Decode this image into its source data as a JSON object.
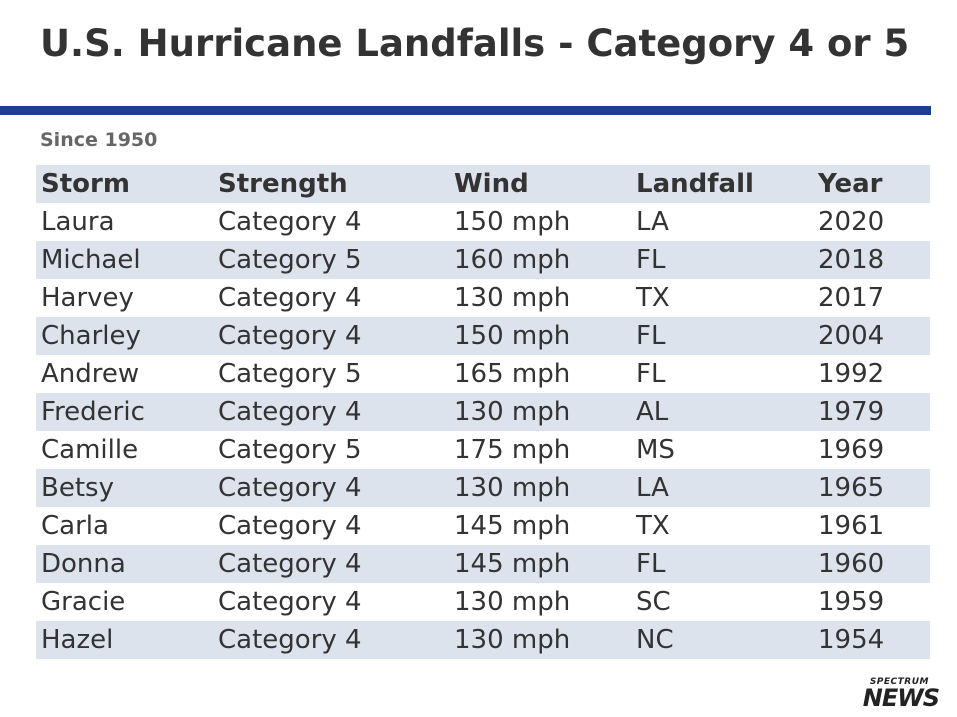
{
  "title": "U.S. Hurricane Landfalls - Category 4 or 5",
  "subtitle": "Since 1950",
  "colors": {
    "rule": "#1c3f8c",
    "stripe": "#dde3ed",
    "text": "#333333"
  },
  "logo": {
    "line1": "SPECTRUM",
    "line2": "NEWS"
  },
  "chart_data": {
    "type": "table",
    "title": "U.S. Hurricane Landfalls - Category 4 or 5",
    "subtitle": "Since 1950",
    "columns": [
      "Storm",
      "Strength",
      "Wind",
      "Landfall",
      "Year"
    ],
    "rows": [
      [
        "Laura",
        "Category 4",
        "150 mph",
        "LA",
        "2020"
      ],
      [
        "Michael",
        "Category 5",
        "160 mph",
        "FL",
        "2018"
      ],
      [
        "Harvey",
        "Category 4",
        "130 mph",
        "TX",
        "2017"
      ],
      [
        "Charley",
        "Category 4",
        "150 mph",
        "FL",
        "2004"
      ],
      [
        "Andrew",
        "Category 5",
        "165 mph",
        "FL",
        "1992"
      ],
      [
        "Frederic",
        "Category 4",
        "130 mph",
        "AL",
        "1979"
      ],
      [
        "Camille",
        "Category 5",
        "175 mph",
        "MS",
        "1969"
      ],
      [
        "Betsy",
        "Category 4",
        "130 mph",
        "LA",
        "1965"
      ],
      [
        "Carla",
        "Category 4",
        "145 mph",
        "TX",
        "1961"
      ],
      [
        "Donna",
        "Category 4",
        "145 mph",
        "FL",
        "1960"
      ],
      [
        "Gracie",
        "Category 4",
        "130 mph",
        "SC",
        "1959"
      ],
      [
        "Hazel",
        "Category 4",
        "130 mph",
        "NC",
        "1954"
      ]
    ]
  }
}
